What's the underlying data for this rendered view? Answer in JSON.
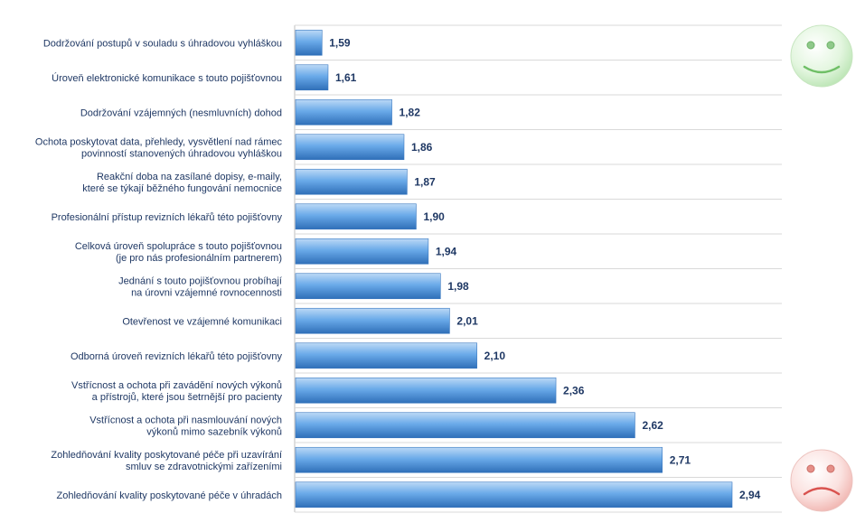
{
  "chart_data": {
    "type": "bar",
    "orientation": "horizontal",
    "categories": [
      "Dodržování postupů v souladu s úhradovou vyhláškou",
      "Úroveň elektronické komunikace s touto pojišťovnou",
      "Dodržování vzájemných (nesmluvních) dohod",
      "Ochota poskytovat data, přehledy, vysvětlení nad rámec\npovinností stanovených úhradovou vyhláškou",
      "Reakční doba na zasílané dopisy, e-maily,\nkteré se týkají běžného fungování nemocnice",
      "Profesionální přístup revizních lékařů této pojišťovny",
      "Celková úroveň spolupráce s touto pojišťovnou\n(je pro nás profesionálním partnerem)",
      "Jednání s touto pojišťovnou probíhají\nna úrovni vzájemné rovnocennosti",
      "Otevřenost ve vzájemné komunikaci",
      "Odborná úroveň revizních lékařů této pojišťovny",
      "Vstřícnost a ochota při zavádění nových výkonů\na přístrojů, které jsou šetrnější pro pacienty",
      "Vstřícnost a ochota při nasmlouvání nových\nvýkonů mimo sazebník výkonů",
      "Zohledňování kvality poskytované péče při uzavírání\nsmluv se zdravotnickými zařízeními",
      "Zohledňování kvality poskytované péče v úhradách"
    ],
    "values": [
      1.59,
      1.61,
      1.82,
      1.86,
      1.87,
      1.9,
      1.94,
      1.98,
      2.01,
      2.1,
      2.36,
      2.62,
      2.71,
      2.94
    ],
    "value_labels": [
      "1,59",
      "1,61",
      "1,82",
      "1,86",
      "1,87",
      "1,90",
      "1,94",
      "1,98",
      "2,01",
      "2,10",
      "2,36",
      "2,62",
      "2,71",
      "2,94"
    ],
    "xlim": [
      1.5,
      3.0
    ],
    "grid": "horizontal-separators",
    "bar_color": "#4a8fd6",
    "label_color": "#1f3864",
    "icons": [
      "smiley-happy-icon",
      "smiley-sad-icon"
    ]
  }
}
